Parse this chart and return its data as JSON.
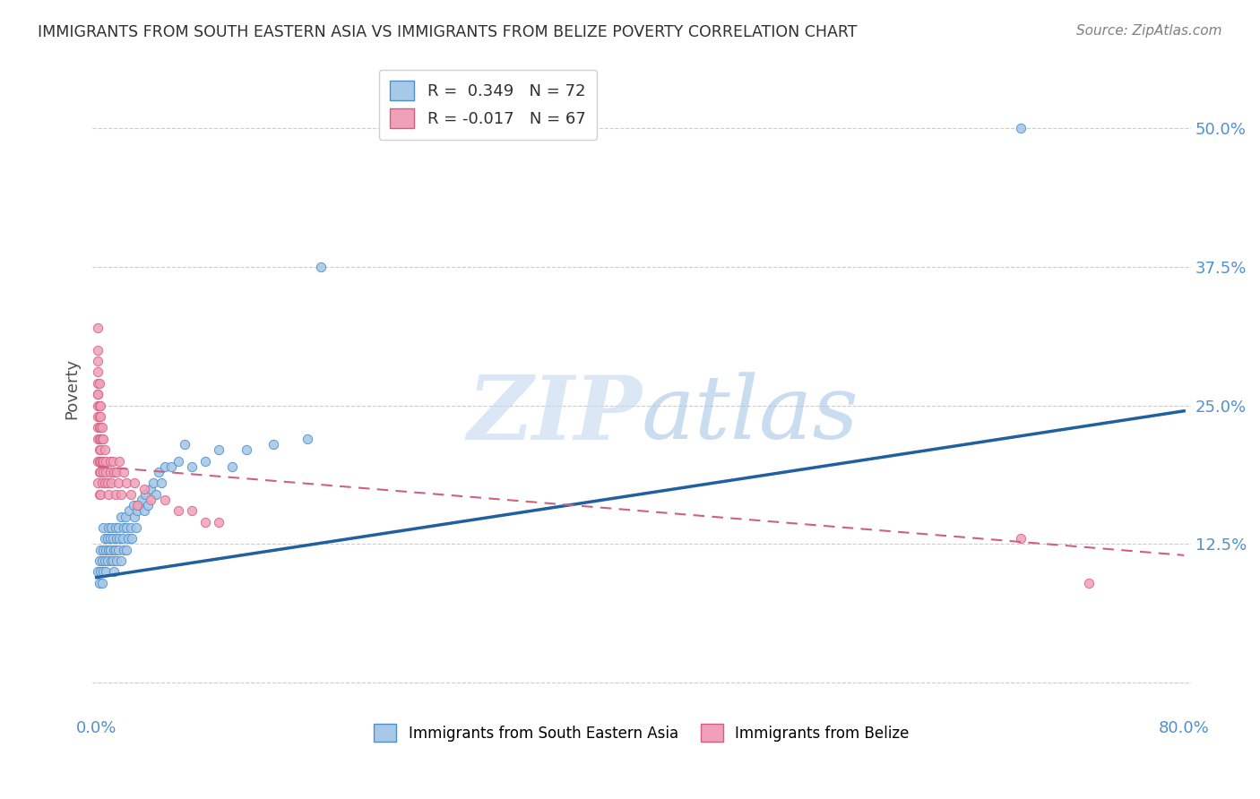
{
  "title": "IMMIGRANTS FROM SOUTH EASTERN ASIA VS IMMIGRANTS FROM BELIZE POVERTY CORRELATION CHART",
  "source": "Source: ZipAtlas.com",
  "ylabel": "Poverty",
  "xlim": [
    -0.003,
    0.805
  ],
  "ylim": [
    -0.03,
    0.56
  ],
  "watermark_zip": "ZIP",
  "watermark_atlas": "atlas",
  "legend_r1": "R =  0.349",
  "legend_n1": "N = 72",
  "legend_r2": "R = -0.017",
  "legend_n2": "N = 67",
  "label_sea": "Immigrants from South Eastern Asia",
  "label_belize": "Immigrants from Belize",
  "color_sea_fill": "#a8c8e8",
  "color_sea_edge": "#5090c8",
  "color_belize_fill": "#f0a0b8",
  "color_belize_edge": "#d06080",
  "color_sea_line": "#2060a0",
  "color_belize_line": "#d06080",
  "background_color": "#ffffff",
  "title_color": "#303030",
  "axis_label_color": "#5090d0",
  "grid_color": "#cccccc",
  "ytick_vals": [
    0.125,
    0.25,
    0.375,
    0.5
  ],
  "ytick_labels": [
    "12.5%",
    "25.0%",
    "37.5%",
    "50.0%"
  ],
  "xtick_vals": [
    0.0,
    0.8
  ],
  "xtick_labels": [
    "0.0%",
    "80.0%"
  ],
  "sea_x": [
    0.001,
    0.002,
    0.002,
    0.003,
    0.003,
    0.004,
    0.004,
    0.005,
    0.005,
    0.005,
    0.006,
    0.006,
    0.007,
    0.007,
    0.008,
    0.008,
    0.009,
    0.009,
    0.01,
    0.01,
    0.011,
    0.011,
    0.012,
    0.012,
    0.013,
    0.013,
    0.014,
    0.014,
    0.015,
    0.015,
    0.016,
    0.016,
    0.017,
    0.018,
    0.018,
    0.019,
    0.02,
    0.02,
    0.021,
    0.022,
    0.022,
    0.023,
    0.024,
    0.025,
    0.026,
    0.027,
    0.028,
    0.029,
    0.03,
    0.031,
    0.033,
    0.035,
    0.036,
    0.038,
    0.04,
    0.042,
    0.044,
    0.046,
    0.048,
    0.05,
    0.055,
    0.06,
    0.065,
    0.07,
    0.08,
    0.09,
    0.1,
    0.11,
    0.13,
    0.155,
    0.165,
    0.68
  ],
  "sea_y": [
    0.1,
    0.11,
    0.09,
    0.12,
    0.1,
    0.11,
    0.09,
    0.12,
    0.1,
    0.14,
    0.11,
    0.13,
    0.12,
    0.1,
    0.13,
    0.11,
    0.12,
    0.14,
    0.12,
    0.13,
    0.11,
    0.14,
    0.13,
    0.11,
    0.12,
    0.1,
    0.14,
    0.12,
    0.13,
    0.11,
    0.14,
    0.12,
    0.13,
    0.11,
    0.15,
    0.13,
    0.14,
    0.12,
    0.15,
    0.14,
    0.12,
    0.13,
    0.155,
    0.14,
    0.13,
    0.16,
    0.15,
    0.14,
    0.155,
    0.16,
    0.165,
    0.155,
    0.17,
    0.16,
    0.175,
    0.18,
    0.17,
    0.19,
    0.18,
    0.195,
    0.195,
    0.2,
    0.215,
    0.195,
    0.2,
    0.21,
    0.195,
    0.21,
    0.215,
    0.22,
    0.375,
    0.5
  ],
  "belize_x": [
    0.001,
    0.001,
    0.001,
    0.001,
    0.001,
    0.001,
    0.001,
    0.001,
    0.001,
    0.001,
    0.001,
    0.001,
    0.001,
    0.002,
    0.002,
    0.002,
    0.002,
    0.002,
    0.002,
    0.002,
    0.002,
    0.002,
    0.003,
    0.003,
    0.003,
    0.003,
    0.003,
    0.003,
    0.003,
    0.003,
    0.004,
    0.004,
    0.004,
    0.004,
    0.005,
    0.005,
    0.005,
    0.006,
    0.006,
    0.007,
    0.007,
    0.008,
    0.009,
    0.01,
    0.01,
    0.011,
    0.012,
    0.013,
    0.014,
    0.015,
    0.016,
    0.017,
    0.018,
    0.02,
    0.022,
    0.025,
    0.028,
    0.03,
    0.035,
    0.04,
    0.05,
    0.06,
    0.07,
    0.08,
    0.09,
    0.68,
    0.73
  ],
  "belize_y": [
    0.3,
    0.28,
    0.32,
    0.26,
    0.24,
    0.29,
    0.27,
    0.25,
    0.22,
    0.2,
    0.23,
    0.26,
    0.18,
    0.25,
    0.23,
    0.21,
    0.27,
    0.24,
    0.19,
    0.22,
    0.2,
    0.17,
    0.23,
    0.21,
    0.19,
    0.24,
    0.2,
    0.17,
    0.22,
    0.25,
    0.22,
    0.2,
    0.18,
    0.23,
    0.2,
    0.22,
    0.19,
    0.21,
    0.18,
    0.2,
    0.19,
    0.18,
    0.17,
    0.2,
    0.19,
    0.18,
    0.2,
    0.19,
    0.17,
    0.19,
    0.18,
    0.2,
    0.17,
    0.19,
    0.18,
    0.17,
    0.18,
    0.16,
    0.175,
    0.165,
    0.165,
    0.155,
    0.155,
    0.145,
    0.145,
    0.13,
    0.09
  ],
  "sea_line_x": [
    0.0,
    0.8
  ],
  "sea_line_y": [
    0.095,
    0.245
  ],
  "belize_line_x": [
    0.001,
    0.8
  ],
  "belize_line_y": [
    0.195,
    0.115
  ]
}
